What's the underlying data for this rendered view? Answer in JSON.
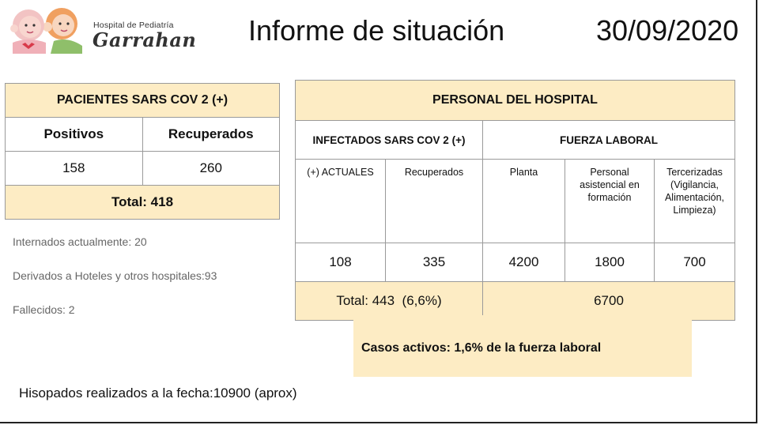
{
  "header": {
    "logo_line1": "Hospital de Pediatría",
    "logo_line2": "Garrahan",
    "title": "Informe de situación",
    "date": "30/09/2020"
  },
  "patients": {
    "heading": "PACIENTES SARS COV 2 (+)",
    "col_positive": "Positivos",
    "col_recovered": "Recuperados",
    "positive": "158",
    "recovered": "260",
    "total": "Total: 418"
  },
  "staff": {
    "heading": "PERSONAL DEL HOSPITAL",
    "infected_heading": "INFECTADOS SARS COV 2 (+)",
    "workforce_heading": "FUERZA LABORAL",
    "sub": {
      "current": "(+) ACTUALES",
      "recovered": "Recuperados",
      "plant": "Planta",
      "training": "Personal asistencial en formación",
      "outsourced": "Tercerizadas (Vigilancia, Alimentación, Limpieza)"
    },
    "values": {
      "current": "108",
      "recovered": "335",
      "plant": "4200",
      "training": "1800",
      "outsourced": "700"
    },
    "infected_total": "Total: 443  (6,6%)",
    "workforce_total": "6700"
  },
  "info": {
    "hospitalized": "Internados actualmente: 20",
    "derived": "Derivados a Hoteles y otros hospitales:93",
    "deceased": "Fallecidos: 2"
  },
  "active_cases": "Casos activos: 1,6% de la fuerza laboral",
  "swabs": "Hisopados realizados a la fecha:10900 (aprox)"
}
